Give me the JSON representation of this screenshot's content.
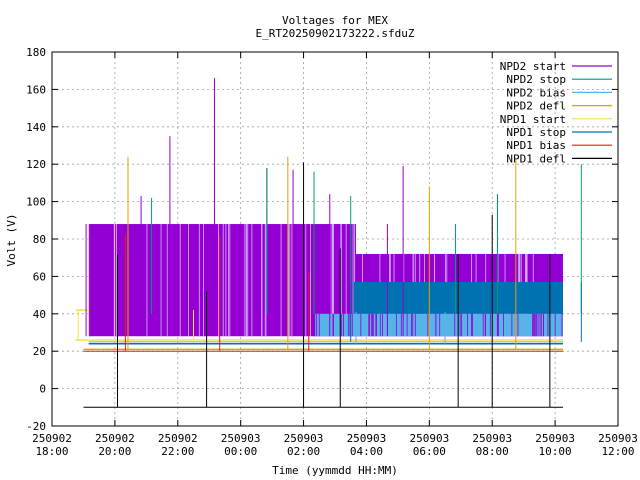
{
  "chart_data": {
    "type": "line",
    "title": "Voltages for MEX",
    "subtitle": "E_RT20250902173222.sfduZ",
    "xlabel": "Time (yymmdd HH:MM)",
    "ylabel": "Volt (V)",
    "ylim": [
      -20,
      180
    ],
    "xlim": [
      "2025-09-02 18:00",
      "2025-09-03 12:00"
    ],
    "y_ticks": [
      "-20",
      "0",
      "20",
      "40",
      "60",
      "80",
      "100",
      "120",
      "140",
      "160",
      "180"
    ],
    "x_ticks": [
      {
        "date": "250902",
        "time": "18:00"
      },
      {
        "date": "250902",
        "time": "20:00"
      },
      {
        "date": "250902",
        "time": "22:00"
      },
      {
        "date": "250903",
        "time": "00:00"
      },
      {
        "date": "250903",
        "time": "02:00"
      },
      {
        "date": "250903",
        "time": "04:00"
      },
      {
        "date": "250903",
        "time": "06:00"
      },
      {
        "date": "250903",
        "time": "08:00"
      },
      {
        "date": "250903",
        "time": "10:00"
      },
      {
        "date": "250903",
        "time": "12:00"
      }
    ],
    "grid": true,
    "legend_position": "top-right",
    "series": [
      {
        "name": "NPD2 start",
        "color": "#9400d3",
        "baseline": 88,
        "baseline2": 72,
        "low": 28,
        "spikes": [
          [
            "19:05",
            88
          ],
          [
            "20:50",
            103
          ],
          [
            "21:45",
            135
          ],
          [
            "23:10",
            166
          ],
          [
            "00:50",
            118
          ],
          [
            "01:40",
            117
          ],
          [
            "02:50",
            104
          ],
          [
            "04:40",
            88
          ],
          [
            "05:10",
            119
          ],
          [
            "08:10",
            104
          ]
        ]
      },
      {
        "name": "NPD2 stop",
        "color": "#009e73",
        "baseline": 40,
        "spikes": [
          [
            "21:10",
            102
          ],
          [
            "00:50",
            118
          ],
          [
            "02:20",
            116
          ],
          [
            "03:30",
            103
          ],
          [
            "06:50",
            88
          ],
          [
            "08:10",
            104
          ],
          [
            "10:50",
            120
          ]
        ]
      },
      {
        "name": "NPD2 bias",
        "color": "#56b4e9",
        "baseline": 24,
        "baseline2": 40,
        "spikes": [
          [
            "03:40",
            41
          ],
          [
            "06:30",
            41
          ]
        ]
      },
      {
        "name": "NPD2 defl",
        "color": "#e69f00",
        "baseline": 21,
        "spikes": [
          [
            "20:25",
            124
          ],
          [
            "01:30",
            124
          ],
          [
            "06:00",
            108
          ],
          [
            "08:45",
            122
          ]
        ]
      },
      {
        "name": "NPD1 start",
        "color": "#f0e442",
        "baseline": 26,
        "spikes": [
          [
            "18:50",
            42
          ],
          [
            "22:30",
            42
          ]
        ]
      },
      {
        "name": "NPD1 stop",
        "color": "#0072b2",
        "baseline": 25,
        "baseline2": 57,
        "spikes": [
          [
            "03:30",
            57
          ],
          [
            "10:50",
            57
          ]
        ]
      },
      {
        "name": "NPD1 bias",
        "color": "#e51e10",
        "baseline": 20,
        "spikes": [
          [
            "20:20",
            82
          ],
          [
            "23:20",
            82
          ],
          [
            "02:10",
            62
          ]
        ]
      },
      {
        "name": "NPD1 defl",
        "color": "#000000",
        "baseline": -10,
        "spikes": [
          [
            "20:05",
            72
          ],
          [
            "22:55",
            52
          ],
          [
            "02:00",
            121
          ],
          [
            "03:10",
            75
          ],
          [
            "06:55",
            72
          ],
          [
            "08:00",
            93
          ],
          [
            "09:50",
            72
          ]
        ]
      }
    ]
  }
}
